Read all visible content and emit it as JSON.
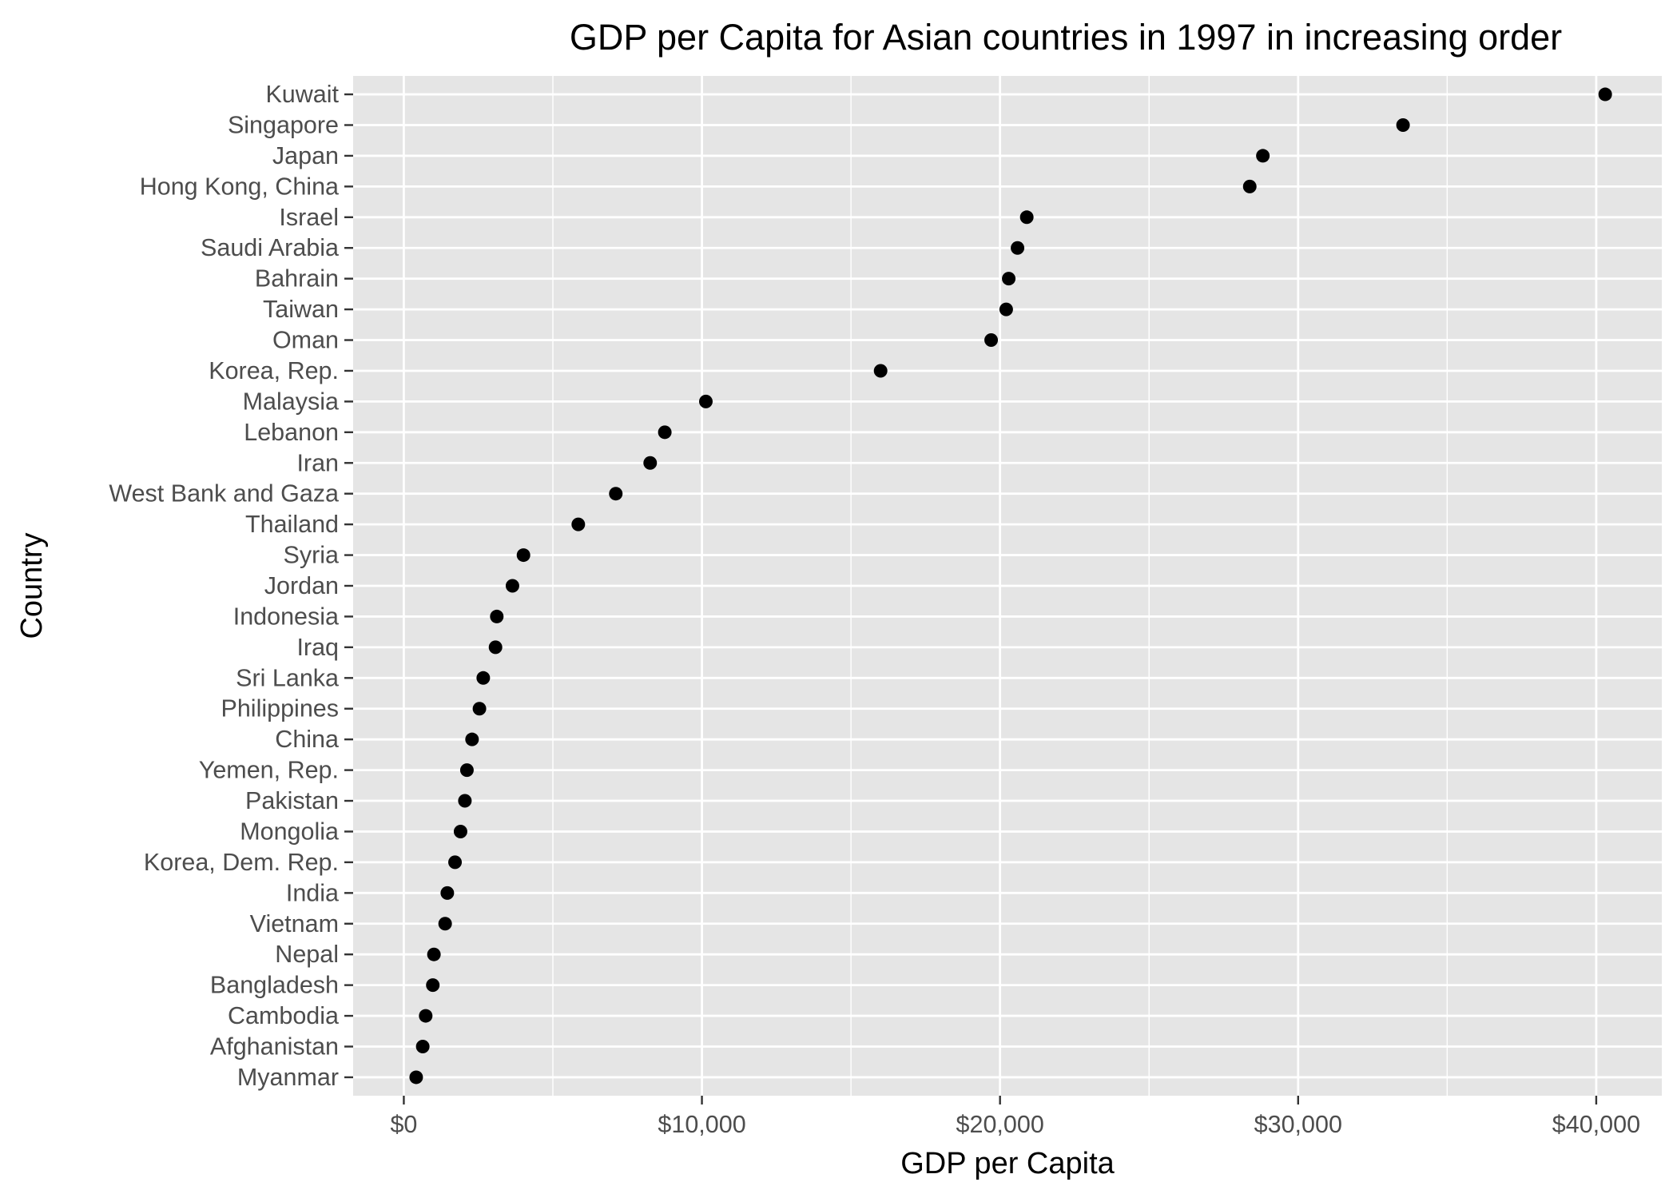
{
  "chart_data": {
    "type": "scatter",
    "title": "GDP per Capita for Asian countries in 1997 in increasing order",
    "xlabel": "GDP per Capita",
    "ylabel": "Country",
    "xlim": [
      -1700,
      42200
    ],
    "x_ticks": [
      0,
      10000,
      20000,
      30000,
      40000
    ],
    "x_tick_labels": [
      "$0",
      "$10,000",
      "$20,000",
      "$30,000",
      "$40,000"
    ],
    "grid": true,
    "legend": "none",
    "colors": {
      "panel_background": "#e5e5e5",
      "grid": "#ffffff",
      "point": "#000000",
      "tick_text": "#4d4d4d",
      "tick_mark": "#333333"
    },
    "categories": [
      "Myanmar",
      "Afghanistan",
      "Cambodia",
      "Bangladesh",
      "Nepal",
      "Vietnam",
      "India",
      "Korea, Dem. Rep.",
      "Mongolia",
      "Pakistan",
      "Yemen, Rep.",
      "China",
      "Philippines",
      "Sri Lanka",
      "Iraq",
      "Indonesia",
      "Jordan",
      "Syria",
      "Thailand",
      "West Bank and Gaza",
      "Iran",
      "Lebanon",
      "Malaysia",
      "Korea, Rep.",
      "Oman",
      "Taiwan",
      "Bahrain",
      "Saudi Arabia",
      "Israel",
      "Hong Kong, China",
      "Japan",
      "Singapore",
      "Kuwait"
    ],
    "values": [
      415,
      635,
      734,
      973,
      1010,
      1386,
      1459,
      1718,
      1903,
      2049,
      2117,
      2289,
      2537,
      2665,
      3076,
      3119,
      3645,
      4014,
      5853,
      7111,
      8264,
      8755,
      10132,
      15994,
      19702,
      20207,
      20292,
      20587,
      20897,
      28377,
      28817,
      33519,
      40301
    ]
  }
}
